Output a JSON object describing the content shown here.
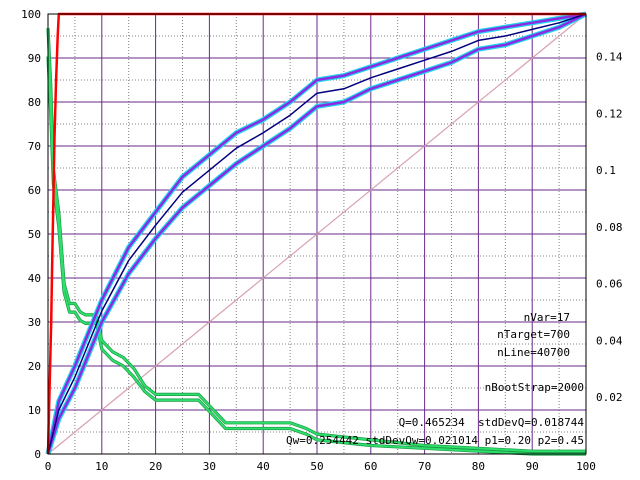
{
  "chart_data": {
    "type": "line",
    "title": "",
    "xlabel": "",
    "ylabel": "",
    "xlim": [
      0,
      100
    ],
    "ylim": [
      0,
      100
    ],
    "y2lim": [
      0,
      0.155
    ],
    "x_ticks": [
      0,
      10,
      20,
      30,
      40,
      50,
      60,
      70,
      80,
      90,
      100
    ],
    "y_ticks": [
      0,
      10,
      20,
      30,
      40,
      50,
      60,
      70,
      80,
      90,
      100
    ],
    "y2_ticks": [
      "0.02",
      "0.04",
      "0.06",
      "0.08",
      "0.1",
      "0.12",
      "0.14"
    ],
    "grid": true,
    "annotations": [
      "nVar=17",
      "nTarget=700",
      "nLine=40700",
      "nBootStrap=2000",
      "Q=0.465234  stdDevQ=0.018744",
      "Qw=0.254442  stdDevQw=0.021014 p1=0.20 p2=0.45"
    ],
    "colors": {
      "grid_major": "#6a2a8a",
      "grid_minor": "#808080",
      "gain_outer": "#22d3ee",
      "gain_band": "#8a2be2",
      "gain_center": "#000080",
      "diagonal": "#d8a0b0",
      "red_curve": "#ff0000",
      "green_curve": "#2ee06a"
    },
    "series": [
      {
        "axis": "left",
        "x": [
          0,
          2,
          5,
          10,
          15,
          20,
          25,
          30,
          35,
          40,
          45,
          50,
          55,
          60,
          65,
          70,
          75,
          80,
          85,
          90,
          95,
          100
        ],
        "y": [
          0,
          12,
          20,
          35,
          47,
          55,
          63,
          68,
          73,
          76,
          80,
          85,
          86,
          88,
          90,
          92,
          94,
          96,
          97,
          98,
          99,
          100
        ]
      },
      {
        "axis": "left",
        "x": [
          0,
          2,
          5,
          10,
          15,
          20,
          25,
          30,
          35,
          40,
          45,
          50,
          55,
          60,
          65,
          70,
          75,
          80,
          85,
          90,
          95,
          100
        ],
        "y": [
          0,
          8,
          15,
          30,
          41,
          49,
          56,
          61,
          66,
          70,
          74,
          79,
          80,
          83,
          85,
          87,
          89,
          92,
          93,
          95,
          97,
          100
        ]
      },
      {
        "axis": "left",
        "x": [
          0,
          2,
          5,
          10,
          15,
          20,
          25,
          30,
          35,
          40,
          45,
          50,
          55,
          60,
          65,
          70,
          75,
          80,
          85,
          90,
          95,
          100
        ],
        "y": [
          0,
          10,
          17.5,
          32.5,
          44,
          52,
          59.5,
          64.5,
          69.5,
          73,
          77,
          82,
          83,
          85.5,
          87.5,
          89.5,
          91.5,
          94,
          95,
          96.5,
          98,
          100
        ]
      },
      {
        "axis": "left",
        "x": [
          0,
          100
        ],
        "y": [
          0,
          100
        ]
      },
      {
        "axis": "left",
        "x": [
          0,
          0.3,
          0.6,
          0.8,
          1.0,
          1.2,
          1.5,
          1.8,
          2,
          100
        ],
        "y": [
          0,
          15,
          30,
          45,
          58,
          72,
          85,
          95,
          100,
          100
        ]
      },
      {
        "axis": "right",
        "x": [
          0,
          0.5,
          1,
          2,
          3,
          4,
          5,
          6,
          7,
          8,
          9,
          10,
          12,
          14,
          16,
          18,
          20,
          25,
          28,
          30,
          32,
          33,
          40,
          45,
          48,
          50,
          55,
          60,
          70,
          80,
          90,
          100
        ],
        "y": [
          0.15,
          0.13,
          0.1,
          0.085,
          0.06,
          0.053,
          0.053,
          0.05,
          0.049,
          0.049,
          0.049,
          0.04,
          0.036,
          0.034,
          0.03,
          0.024,
          0.021,
          0.021,
          0.021,
          0.017,
          0.013,
          0.011,
          0.011,
          0.011,
          0.009,
          0.007,
          0.006,
          0.005,
          0.003,
          0.002,
          0.001,
          0.001
        ]
      },
      {
        "axis": "right",
        "x": [
          0,
          0.5,
          1,
          2,
          3,
          4,
          5,
          6,
          7,
          8,
          9,
          10,
          12,
          14,
          16,
          18,
          20,
          25,
          28,
          30,
          32,
          33,
          40,
          45,
          48,
          50,
          55,
          60,
          70,
          80,
          90,
          100
        ],
        "y": [
          0.14,
          0.12,
          0.095,
          0.08,
          0.057,
          0.05,
          0.05,
          0.047,
          0.046,
          0.046,
          0.046,
          0.037,
          0.033,
          0.031,
          0.027,
          0.022,
          0.019,
          0.019,
          0.019,
          0.015,
          0.011,
          0.009,
          0.009,
          0.009,
          0.007,
          0.005,
          0.004,
          0.003,
          0.002,
          0.001,
          0.0,
          0.0
        ]
      }
    ]
  }
}
